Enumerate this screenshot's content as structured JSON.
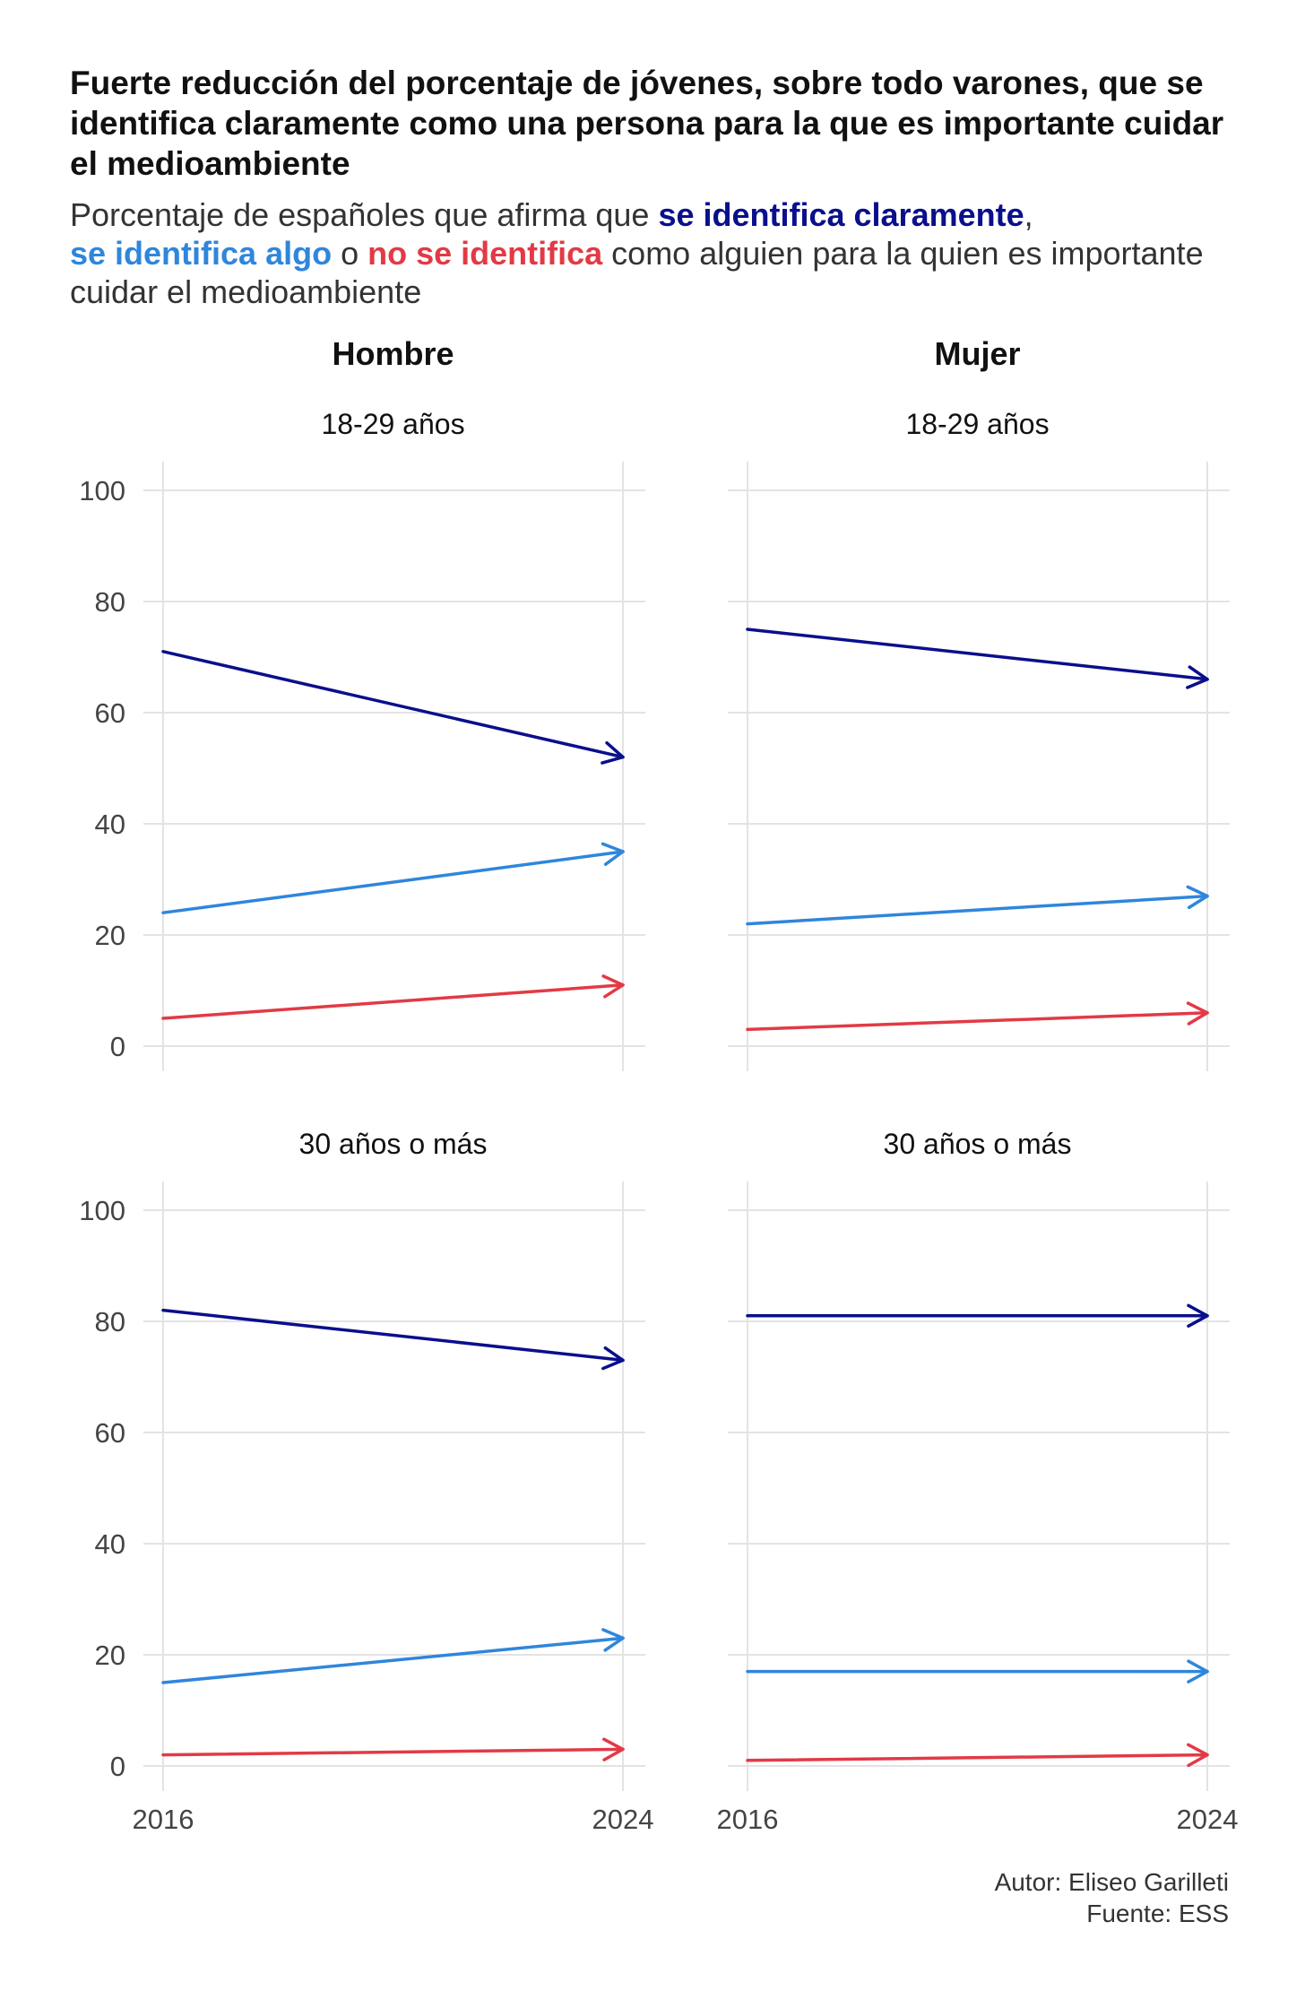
{
  "chart_data": {
    "type": "line",
    "title": "Fuerte reducción del porcentaje de jóvenes, sobre todo varones, que se identifica claramente como una persona para la que es importante cuidar el medioambiente",
    "subtitle_parts": {
      "p1": "Porcentaje de españoles que afirma que ",
      "claramente": "se identifica claramente",
      "p2": ",",
      "algo": "se identifica algo",
      "p3": " o ",
      "no": "no se identifica",
      "p4": " como alguien para la quien es importante cuidar el medioambiente"
    },
    "x": [
      2016,
      2024
    ],
    "xticks": [
      "2016",
      "2024"
    ],
    "ylim": [
      0,
      100
    ],
    "yticks": [
      "0",
      "20",
      "40",
      "60",
      "80",
      "100"
    ],
    "grid": true,
    "columns": [
      "Hombre",
      "Mujer"
    ],
    "rows": [
      "18-29 años",
      "30 años o más"
    ],
    "colors": {
      "claramente": "#0a0f8c",
      "algo": "#2f86db",
      "no": "#e23a45"
    },
    "panels": [
      {
        "column": "Hombre",
        "row": "18-29 años",
        "series": [
          {
            "key": "claramente",
            "values": [
              71,
              52
            ]
          },
          {
            "key": "algo",
            "values": [
              24,
              35
            ]
          },
          {
            "key": "no",
            "values": [
              5,
              11
            ]
          }
        ]
      },
      {
        "column": "Mujer",
        "row": "18-29 años",
        "series": [
          {
            "key": "claramente",
            "values": [
              75,
              66
            ]
          },
          {
            "key": "algo",
            "values": [
              22,
              27
            ]
          },
          {
            "key": "no",
            "values": [
              3,
              6
            ]
          }
        ]
      },
      {
        "column": "Hombre",
        "row": "30 años o más",
        "series": [
          {
            "key": "claramente",
            "values": [
              82,
              73
            ]
          },
          {
            "key": "algo",
            "values": [
              15,
              23
            ]
          },
          {
            "key": "no",
            "values": [
              2,
              3
            ]
          }
        ]
      },
      {
        "column": "Mujer",
        "row": "30 años o más",
        "series": [
          {
            "key": "claramente",
            "values": [
              81,
              81
            ]
          },
          {
            "key": "algo",
            "values": [
              17,
              17
            ]
          },
          {
            "key": "no",
            "values": [
              1,
              2
            ]
          }
        ]
      }
    ]
  },
  "caption": {
    "author": "Autor: Eliseo Garilleti",
    "source": "Fuente: ESS"
  }
}
